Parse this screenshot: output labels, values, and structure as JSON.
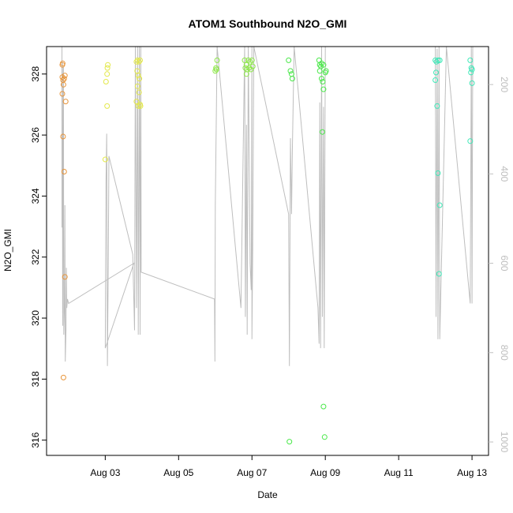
{
  "chart_data": {
    "type": "scatter",
    "title": "ATOM1 Southbound N2O_GMI",
    "xlabel": "Date",
    "ylabel": "N2O_GMI",
    "x_tick_labels": [
      "Aug 03",
      "Aug 05",
      "Aug 07",
      "Aug 09",
      "Aug 11",
      "Aug 13"
    ],
    "x_tick_values": [
      3,
      5,
      7,
      9,
      11,
      13
    ],
    "xlim": [
      1.4,
      13.45
    ],
    "ylim": [
      315.5,
      328.9
    ],
    "y_ticks": [
      316,
      318,
      320,
      322,
      324,
      326,
      328
    ],
    "y2_label": "",
    "y2_ticks": [
      200,
      400,
      600,
      800,
      1000
    ],
    "y2lim": [
      1030,
      115
    ],
    "y2_color": "#c0c0c0",
    "grid": false,
    "series": [
      {
        "color": "#e8953a",
        "points": [
          [
            1.83,
            328.3
          ],
          [
            1.84,
            328.35
          ],
          [
            1.83,
            327.9
          ],
          [
            1.85,
            327.8
          ],
          [
            1.86,
            327.65
          ],
          [
            1.83,
            327.35
          ],
          [
            1.9,
            327.95
          ],
          [
            1.88,
            327.85
          ],
          [
            1.92,
            327.1
          ],
          [
            1.85,
            325.95
          ],
          [
            1.88,
            324.8
          ],
          [
            1.9,
            321.35
          ],
          [
            1.86,
            318.05
          ]
        ]
      },
      {
        "color": "#e3e84a",
        "points": [
          [
            3.0,
            325.2
          ],
          [
            3.02,
            327.75
          ],
          [
            3.05,
            328.0
          ],
          [
            3.06,
            328.2
          ],
          [
            3.07,
            328.3
          ],
          [
            3.05,
            326.95
          ],
          [
            3.85,
            328.4
          ],
          [
            3.88,
            328.45
          ],
          [
            3.92,
            328.4
          ],
          [
            3.95,
            328.45
          ],
          [
            3.87,
            328.1
          ],
          [
            3.9,
            327.95
          ],
          [
            3.93,
            327.85
          ],
          [
            3.88,
            327.6
          ],
          [
            3.92,
            327.4
          ],
          [
            3.85,
            327.1
          ],
          [
            3.9,
            326.95
          ],
          [
            3.95,
            327.0
          ],
          [
            3.96,
            326.95
          ]
        ]
      },
      {
        "color": "#8ee84a",
        "points": [
          [
            6.0,
            328.1
          ],
          [
            6.02,
            328.2
          ],
          [
            6.05,
            328.45
          ],
          [
            6.03,
            328.15
          ],
          [
            6.8,
            328.45
          ],
          [
            6.85,
            328.3
          ],
          [
            6.9,
            328.45
          ],
          [
            6.95,
            328.4
          ],
          [
            7.0,
            328.45
          ],
          [
            6.82,
            328.2
          ],
          [
            6.87,
            328.15
          ],
          [
            6.92,
            328.2
          ],
          [
            6.97,
            328.15
          ],
          [
            7.02,
            328.25
          ],
          [
            6.85,
            328.0
          ]
        ]
      },
      {
        "color": "#4ae84a",
        "points": [
          [
            8.0,
            328.45
          ],
          [
            8.05,
            328.1
          ],
          [
            8.08,
            328.0
          ],
          [
            8.1,
            327.85
          ],
          [
            8.02,
            315.95
          ],
          [
            8.83,
            328.45
          ],
          [
            8.85,
            328.3
          ],
          [
            8.88,
            328.25
          ],
          [
            8.9,
            328.35
          ],
          [
            8.95,
            328.3
          ],
          [
            8.85,
            328.1
          ],
          [
            9.0,
            328.05
          ],
          [
            9.02,
            328.1
          ],
          [
            8.9,
            327.85
          ],
          [
            8.93,
            327.75
          ],
          [
            8.95,
            327.5
          ],
          [
            8.92,
            326.1
          ],
          [
            8.95,
            317.1
          ],
          [
            8.98,
            316.1
          ]
        ]
      },
      {
        "color": "#40e8b8",
        "points": [
          [
            12.0,
            328.45
          ],
          [
            12.03,
            328.4
          ],
          [
            12.08,
            328.45
          ],
          [
            12.12,
            328.45
          ],
          [
            12.02,
            328.05
          ],
          [
            12.0,
            327.8
          ],
          [
            12.05,
            326.95
          ],
          [
            12.07,
            324.75
          ],
          [
            12.12,
            323.7
          ],
          [
            12.1,
            321.45
          ],
          [
            12.95,
            328.45
          ],
          [
            12.98,
            328.2
          ],
          [
            13.0,
            328.15
          ],
          [
            12.97,
            328.05
          ],
          [
            13.0,
            327.7
          ],
          [
            12.95,
            325.8
          ]
        ]
      }
    ],
    "line_series": {
      "color": "#bebebe",
      "note_units": "pressure",
      "points": [
        [
          1.82,
          115
        ],
        [
          1.82,
          520
        ],
        [
          1.83,
          150
        ],
        [
          1.84,
          740
        ],
        [
          1.86,
          160
        ],
        [
          1.87,
          760
        ],
        [
          1.89,
          690
        ],
        [
          1.9,
          470
        ],
        [
          1.91,
          820
        ],
        [
          1.93,
          750
        ],
        [
          1.94,
          610
        ],
        [
          1.95,
          700
        ],
        [
          1.97,
          680
        ],
        [
          2.0,
          690
        ],
        [
          3.78,
          600
        ],
        [
          3.0,
          790
        ],
        [
          3.02,
          420
        ],
        [
          3.04,
          310
        ],
        [
          3.05,
          580
        ],
        [
          3.06,
          830
        ],
        [
          3.08,
          620
        ],
        [
          3.1,
          360
        ],
        [
          3.75,
          580
        ],
        [
          3.8,
          750
        ],
        [
          3.82,
          100
        ],
        [
          3.85,
          700
        ],
        [
          3.88,
          100
        ],
        [
          3.9,
          760
        ],
        [
          3.93,
          100
        ],
        [
          3.95,
          760
        ],
        [
          3.97,
          100
        ],
        [
          3.98,
          620
        ],
        [
          5.98,
          680
        ],
        [
          5.99,
          820
        ],
        [
          6.0,
          470
        ],
        [
          6.05,
          100
        ],
        [
          6.7,
          700
        ],
        [
          6.8,
          100
        ],
        [
          6.82,
          720
        ],
        [
          6.85,
          290
        ],
        [
          6.87,
          760
        ],
        [
          6.9,
          100
        ],
        [
          6.95,
          600
        ],
        [
          6.98,
          660
        ],
        [
          7.0,
          100
        ],
        [
          7.0,
          770
        ],
        [
          7.02,
          570
        ],
        [
          7.05,
          100
        ],
        [
          8.0,
          490
        ],
        [
          8.02,
          830
        ],
        [
          8.05,
          320
        ],
        [
          8.08,
          490
        ],
        [
          8.1,
          350
        ],
        [
          8.15,
          100
        ],
        [
          8.8,
          700
        ],
        [
          8.83,
          780
        ],
        [
          8.85,
          240
        ],
        [
          8.87,
          790
        ],
        [
          8.9,
          100
        ],
        [
          8.92,
          720
        ],
        [
          8.95,
          250
        ],
        [
          8.97,
          790
        ],
        [
          9.0,
          100
        ],
        [
          12.0,
          100
        ],
        [
          12.02,
          720
        ],
        [
          12.05,
          120
        ],
        [
          12.07,
          770
        ],
        [
          12.1,
          100
        ],
        [
          12.12,
          770
        ],
        [
          12.15,
          660
        ],
        [
          12.3,
          100
        ],
        [
          12.95,
          690
        ],
        [
          12.98,
          100
        ],
        [
          13.0,
          690
        ],
        [
          13.02,
          100
        ]
      ]
    }
  }
}
